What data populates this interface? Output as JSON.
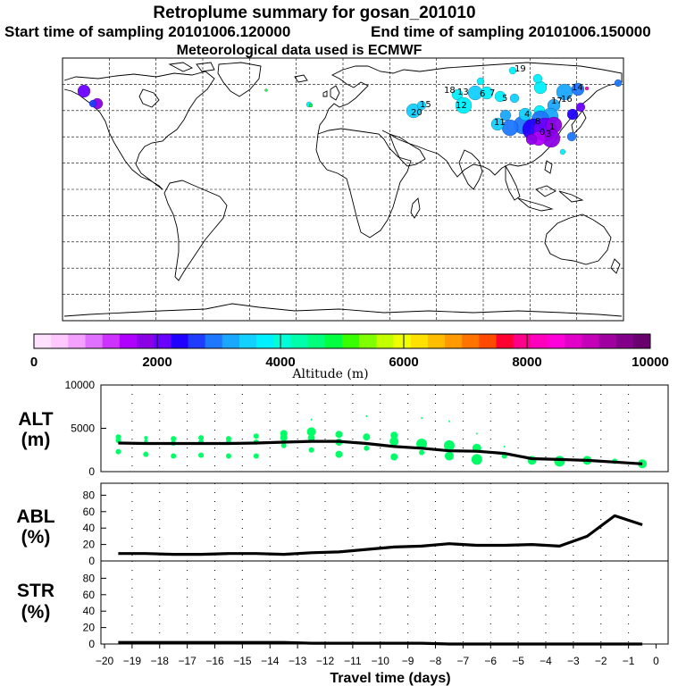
{
  "header": {
    "title": "Retroplume summary for gosan_201010",
    "start_label": "Start time of sampling 20101006.120000",
    "end_label": "End time of sampling 20101006.150000",
    "met_label": "Meteorological data used is ECMWF"
  },
  "map": {
    "gridlines": "dashed",
    "plume_label_values": [
      "20",
      "13",
      "12",
      "14",
      "16",
      "11",
      "7",
      "6",
      "5",
      "8",
      "3",
      "18",
      "19",
      "15",
      "17",
      "4",
      "1",
      "0"
    ]
  },
  "colorbar": {
    "colors": [
      "#ffe0ff",
      "#ffc8ff",
      "#f4a0ff",
      "#e070ff",
      "#cc33ff",
      "#b000ff",
      "#8c00e6",
      "#6a00ff",
      "#2200ff",
      "#1f3cff",
      "#1e78ff",
      "#1aa8ff",
      "#12d0ff",
      "#00f0ff",
      "#00ffd8",
      "#00ffaa",
      "#00ff7a",
      "#00ff40",
      "#38ff00",
      "#80ff00",
      "#c4ff00",
      "#f0ff00",
      "#ffe100",
      "#ffbd00",
      "#ff9a00",
      "#ff7300",
      "#ff4a00",
      "#ff0030",
      "#ff008a",
      "#ff00bc",
      "#ff00d8",
      "#e000c8",
      "#c400b8",
      "#a000a0",
      "#820088",
      "#6a006e"
    ],
    "tick_labels": [
      "0",
      "2000",
      "4000",
      "6000",
      "8000",
      "10000"
    ],
    "xlabel": "Altitude (m)"
  },
  "panels": {
    "alt_label": "ALT",
    "alt_unit": "(m)",
    "abl_label": "ABL",
    "abl_unit": "(%)",
    "str_label": "STR",
    "str_unit": "(%)",
    "alt_ticks": [
      "0",
      "5000",
      "10000"
    ],
    "pct_ticks": [
      "0",
      "20",
      "40",
      "60",
      "80"
    ],
    "xticks": [
      "−20",
      "−19",
      "−18",
      "−17",
      "−16",
      "−15",
      "−14",
      "−13",
      "−12",
      "−11",
      "−10",
      "−9",
      "−8",
      "−7",
      "−6",
      "−5",
      "−4",
      "−3",
      "−2",
      "−1",
      "0"
    ],
    "xlabel": "Travel time (days)"
  },
  "chart_data": [
    {
      "type": "line",
      "title": "ALT (m)",
      "xlabel": "Travel time (days)",
      "ylabel": "ALT (m)",
      "xlim": [
        -20,
        0
      ],
      "ylim": [
        0,
        10000
      ],
      "series": [
        {
          "name": "mean altitude",
          "x": [
            -19.5,
            -18.5,
            -17.5,
            -16.5,
            -15.5,
            -14.5,
            -13.5,
            -12.5,
            -11.5,
            -10.5,
            -9.5,
            -8.5,
            -7.5,
            -6.5,
            -5.5,
            -4.5,
            -3.5,
            -2.5,
            -1.5,
            -0.5
          ],
          "y": [
            3300,
            3250,
            3250,
            3250,
            3250,
            3300,
            3400,
            3500,
            3500,
            3250,
            2900,
            2700,
            2400,
            2350,
            2100,
            1500,
            1400,
            1300,
            1100,
            900
          ]
        }
      ],
      "scatter": {
        "name": "plume clusters",
        "color": "#00ff66",
        "x": [
          -19.5,
          -19.5,
          -19.5,
          -18.5,
          -18.5,
          -18.5,
          -17.5,
          -17.5,
          -17.5,
          -16.5,
          -16.5,
          -16.5,
          -15.5,
          -15.5,
          -15.5,
          -14.5,
          -14.5,
          -14.5,
          -13.5,
          -13.5,
          -13.5,
          -12.5,
          -12.5,
          -12.5,
          -12.5,
          -11.5,
          -11.5,
          -11.5,
          -10.5,
          -10.5,
          -10.5,
          -9.5,
          -9.5,
          -9.5,
          -8.5,
          -8.5,
          -8.5,
          -7.5,
          -7.5,
          -7.5,
          -6.5,
          -6.5,
          -6.5,
          -5.5,
          -5.5,
          -4.5,
          -4.5,
          -3.5,
          -3.5,
          -2.5,
          -1.5,
          -0.5,
          -0.5
        ],
        "y": [
          4000,
          3600,
          2300,
          3900,
          3500,
          2000,
          3800,
          3300,
          1800,
          3900,
          3400,
          1900,
          3800,
          3400,
          1800,
          4100,
          3400,
          1800,
          4400,
          3900,
          3000,
          4600,
          3900,
          2500,
          6000,
          4300,
          3400,
          2000,
          6400,
          4000,
          2700,
          4200,
          3500,
          1700,
          6200,
          3200,
          2200,
          5800,
          3000,
          1800,
          4400,
          2700,
          1400,
          2900,
          1800,
          1500,
          1300,
          1500,
          1200,
          1300,
          1200,
          1000,
          900
        ],
        "size": [
          3,
          3,
          3,
          2,
          2,
          3,
          3,
          3,
          3,
          3,
          3,
          3,
          3,
          3,
          3,
          3,
          3,
          3,
          4,
          4,
          3,
          5,
          4,
          3,
          1,
          4,
          4,
          4,
          1,
          4,
          3,
          4,
          5,
          4,
          1,
          6,
          3,
          1,
          6,
          5,
          1,
          5,
          6,
          1,
          3,
          2,
          5,
          1,
          6,
          5,
          3,
          3,
          5
        ]
      }
    },
    {
      "type": "line",
      "title": "ABL (%)",
      "xlabel": "Travel time (days)",
      "ylabel": "ABL (%)",
      "xlim": [
        -20,
        0
      ],
      "ylim": [
        0,
        100
      ],
      "series": [
        {
          "name": "fraction in boundary layer",
          "x": [
            -19.5,
            -18.5,
            -17.5,
            -16.5,
            -15.5,
            -14.5,
            -13.5,
            -12.5,
            -11.5,
            -10.5,
            -9.5,
            -8.5,
            -7.5,
            -6.5,
            -5.5,
            -4.5,
            -3.5,
            -2.5,
            -1.5,
            -0.5
          ],
          "y": [
            9,
            9,
            8,
            8,
            9,
            9,
            8,
            10,
            11,
            14,
            17,
            18,
            21,
            19,
            19,
            20,
            18,
            30,
            55,
            44
          ]
        }
      ]
    },
    {
      "type": "line",
      "title": "STR (%)",
      "xlabel": "Travel time (days)",
      "ylabel": "STR (%)",
      "xlim": [
        -20,
        0
      ],
      "ylim": [
        0,
        100
      ],
      "series": [
        {
          "name": "fraction in stratosphere",
          "x": [
            -19.5,
            -18.5,
            -17.5,
            -16.5,
            -15.5,
            -14.5,
            -13.5,
            -12.5,
            -11.5,
            -10.5,
            -9.5,
            -8.5,
            -7.5,
            -6.5,
            -5.5,
            -4.5,
            -3.5,
            -2.5,
            -1.5,
            -0.5
          ],
          "y": [
            2,
            2,
            2,
            2,
            2,
            2,
            2,
            1,
            1,
            1,
            1,
            1,
            0,
            0,
            0,
            0,
            0,
            0,
            0,
            0
          ]
        }
      ]
    }
  ]
}
